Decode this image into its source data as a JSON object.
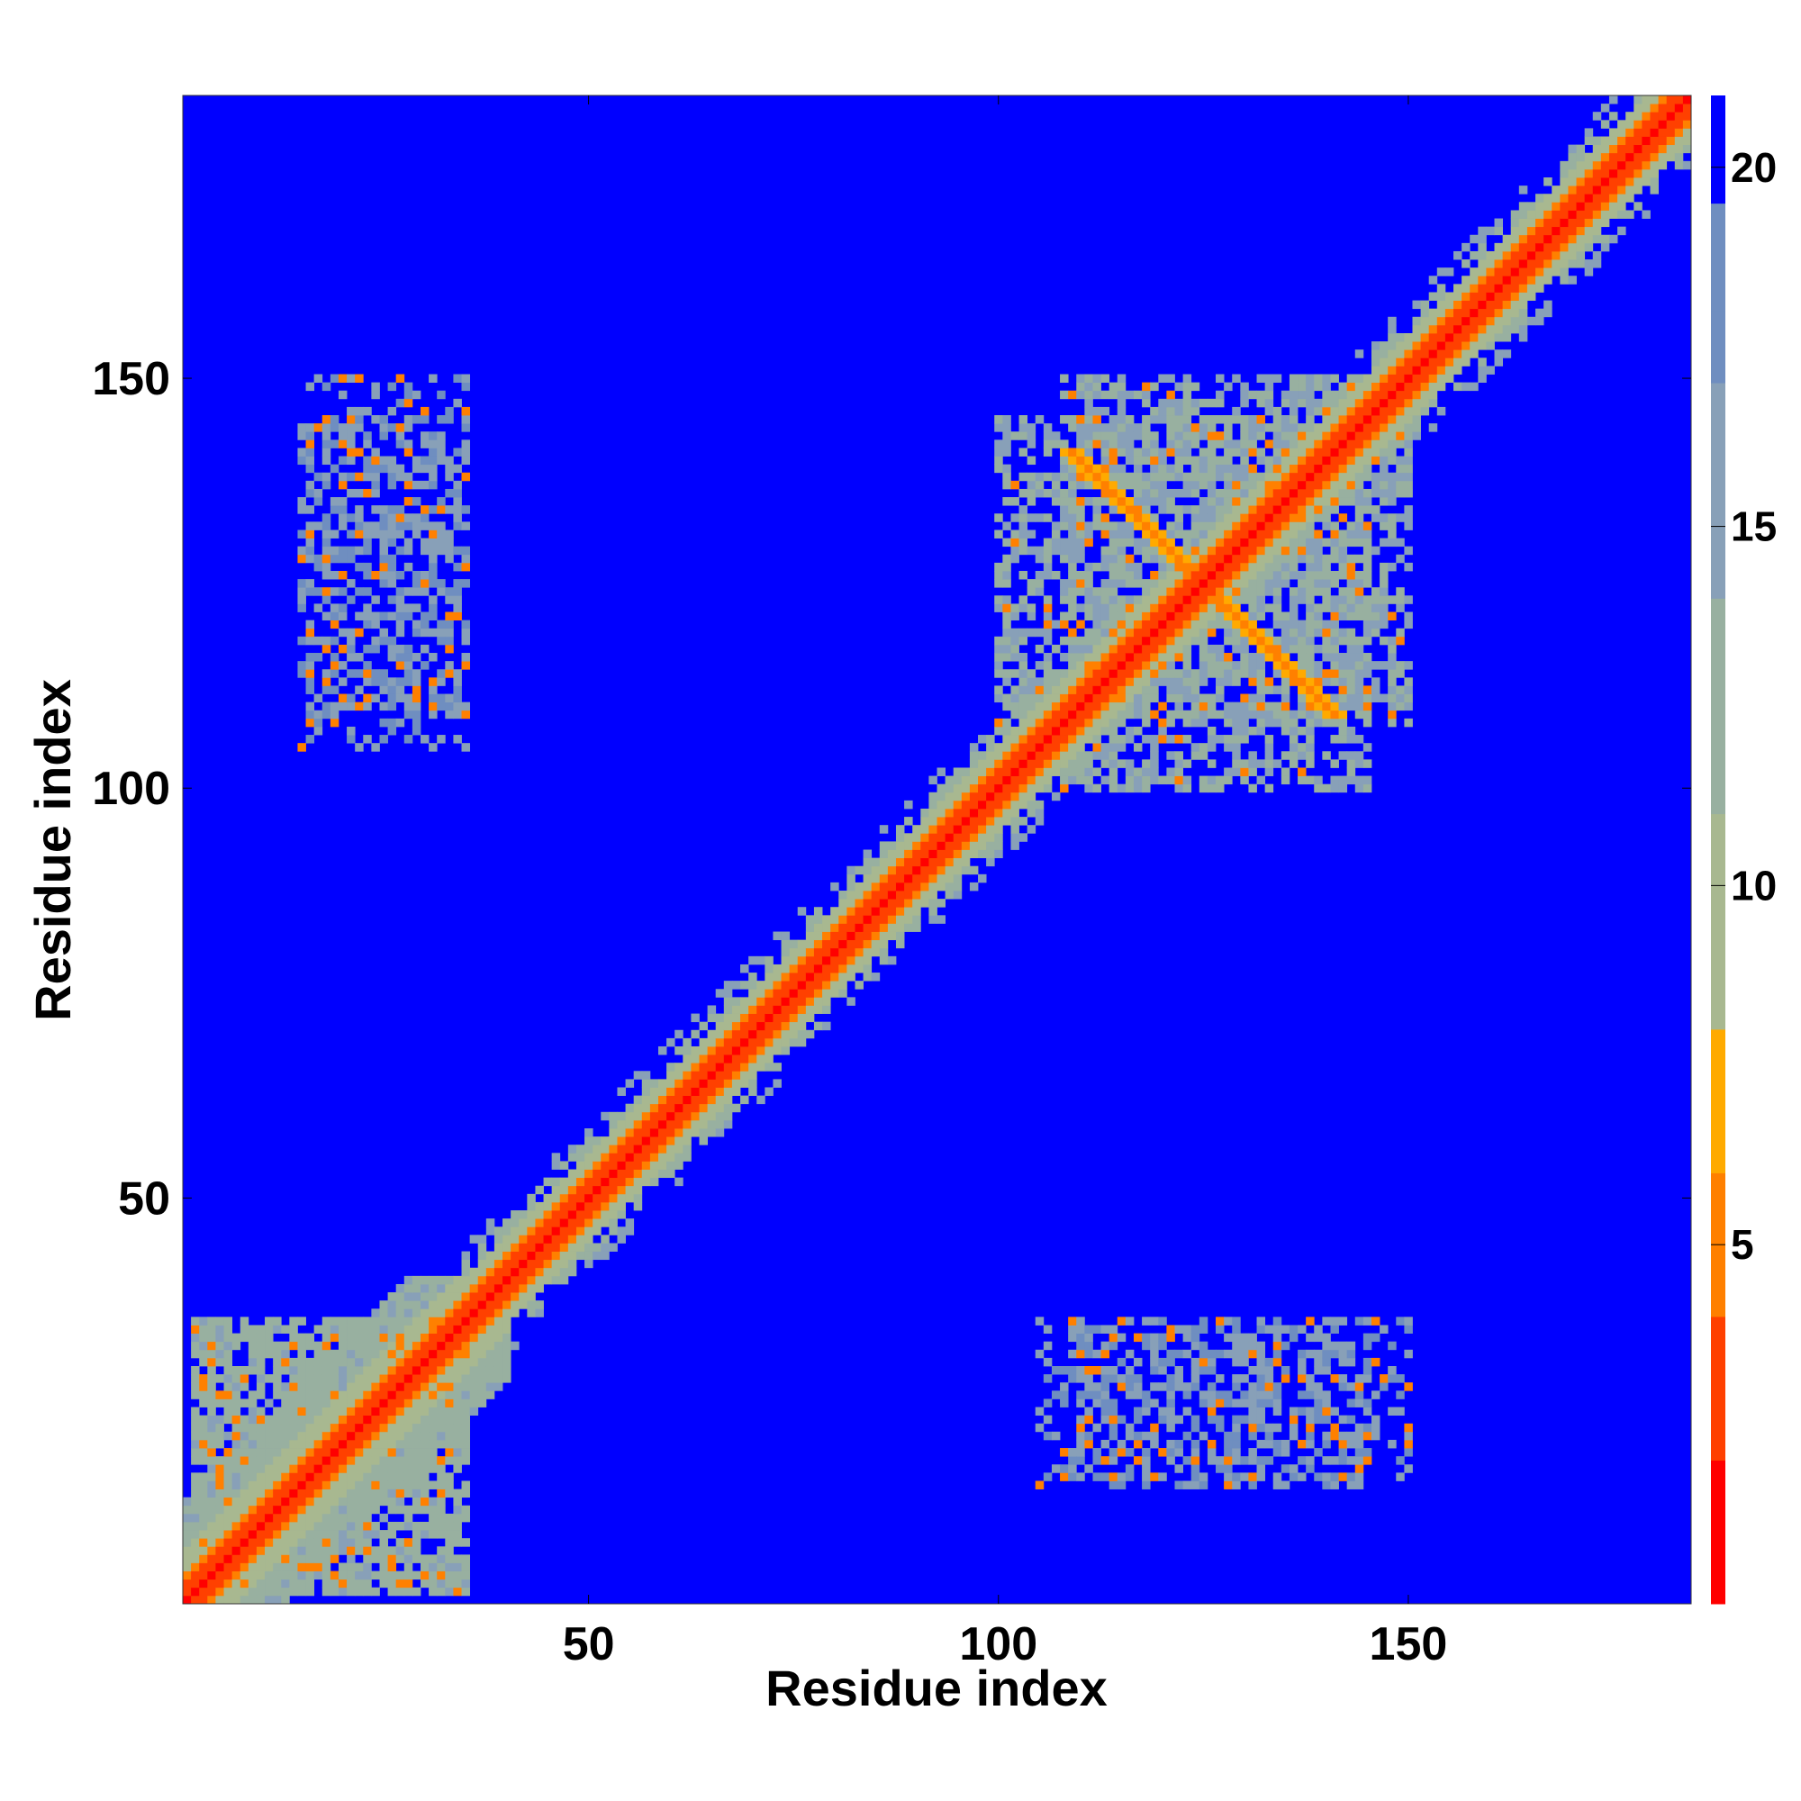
{
  "chart_data": {
    "type": "heatmap",
    "title": "",
    "xlabel": "Residue index",
    "ylabel": "Residue index",
    "xlim": [
      1,
      184
    ],
    "ylim": [
      1,
      184
    ],
    "x_ticks": [
      50,
      100,
      150
    ],
    "y_ticks": [
      50,
      100,
      150
    ],
    "colorbar": {
      "ticks": [
        5,
        10,
        15,
        20
      ],
      "range": [
        0,
        21
      ],
      "colors": [
        "#ff0000",
        "#ff4000",
        "#ff8000",
        "#ffaa00",
        "#a8b890",
        "#98b0a0",
        "#88a0b8",
        "#6f8ec0",
        "#0000ff"
      ]
    },
    "background_color": "#0000ff",
    "matrix_symmetric": true,
    "diagonal_band": {
      "core": 2,
      "orange": 4,
      "green": 8
    },
    "features": [
      {
        "kind": "antidiagonal",
        "center": [
          125,
          125
        ],
        "length": 16,
        "value": 6
      },
      {
        "kind": "blob",
        "x": [
          108,
          145
        ],
        "y": [
          100,
          150
        ],
        "value": 13
      },
      {
        "kind": "blob",
        "x": [
          15,
          35
        ],
        "y": [
          105,
          150
        ],
        "value": 16
      },
      {
        "kind": "blob",
        "x": [
          110,
          145
        ],
        "y": [
          15,
          35
        ],
        "value": 16
      },
      {
        "kind": "blob",
        "x": [
          2,
          35
        ],
        "y": [
          2,
          35
        ],
        "value": 12
      }
    ]
  }
}
